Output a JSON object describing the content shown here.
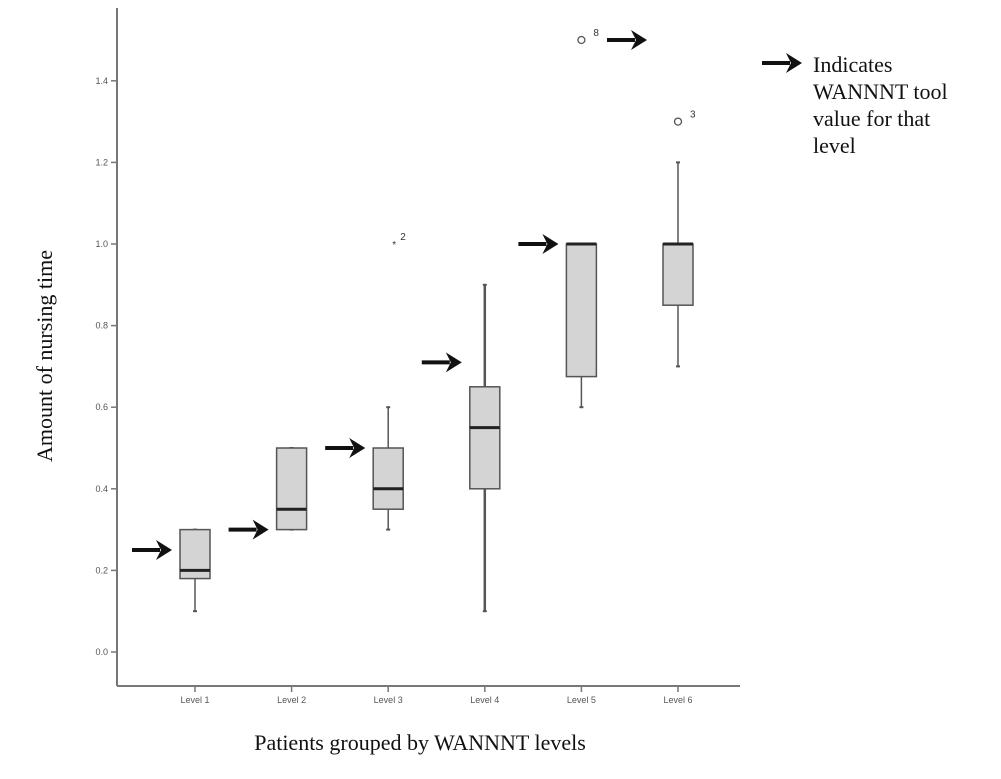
{
  "chart_data": {
    "type": "box",
    "xlabel": "Patients grouped by WANNNT levels",
    "ylabel": "Amount of nursing time",
    "categories": [
      "Level 1",
      "Level 2",
      "Level 3",
      "Level 4",
      "Level 5",
      "Level 6"
    ],
    "yticks": [
      "0.0",
      "0.2",
      "0.4",
      "0.6",
      "0.8",
      "1.0",
      "1.2",
      "1.4"
    ],
    "ylim": [
      -0.08,
      1.58
    ],
    "grid": false,
    "box_color": "#d4d4d4",
    "boxes": [
      {
        "category": "Level 1",
        "whisker_low": 0.1,
        "q1": 0.18,
        "median": 0.2,
        "q3": 0.3,
        "whisker_high": 0.3,
        "outliers": []
      },
      {
        "category": "Level 2",
        "whisker_low": 0.3,
        "q1": 0.3,
        "median": 0.35,
        "q3": 0.5,
        "whisker_high": 0.5,
        "outliers": []
      },
      {
        "category": "Level 3",
        "whisker_low": 0.3,
        "q1": 0.35,
        "median": 0.4,
        "q3": 0.5,
        "whisker_high": 0.6,
        "outliers": [
          {
            "value": 1.0,
            "label": "2",
            "marker": "star"
          }
        ]
      },
      {
        "category": "Level 4",
        "whisker_low": 0.1,
        "q1": 0.4,
        "median": 0.55,
        "q3": 0.65,
        "whisker_high": 0.9,
        "outliers": []
      },
      {
        "category": "Level 5",
        "whisker_low": 0.6,
        "q1": 0.675,
        "median": 1.0,
        "q3": 1.0,
        "whisker_high": 1.0,
        "outliers": [
          {
            "value": 1.5,
            "label": "8",
            "marker": "circle"
          }
        ]
      },
      {
        "category": "Level 6",
        "whisker_low": 0.7,
        "q1": 0.85,
        "median": 1.0,
        "q3": 1.0,
        "whisker_high": 1.2,
        "outliers": [
          {
            "value": 1.3,
            "label": "3",
            "marker": "circle"
          }
        ]
      }
    ],
    "wannnt_tool_values": [
      {
        "category": "Level 1",
        "value": 0.25
      },
      {
        "category": "Level 2",
        "value": 0.3
      },
      {
        "category": "Level 3",
        "value": 0.5
      },
      {
        "category": "Level 4",
        "value": 0.71
      },
      {
        "category": "Level 5",
        "value": 1.0
      },
      {
        "category": "Level 6",
        "value": 1.5
      }
    ],
    "legend": {
      "placement": "top-right",
      "lines": [
        "Indicates",
        "WANNNT tool",
        "value for that",
        "level"
      ]
    }
  }
}
